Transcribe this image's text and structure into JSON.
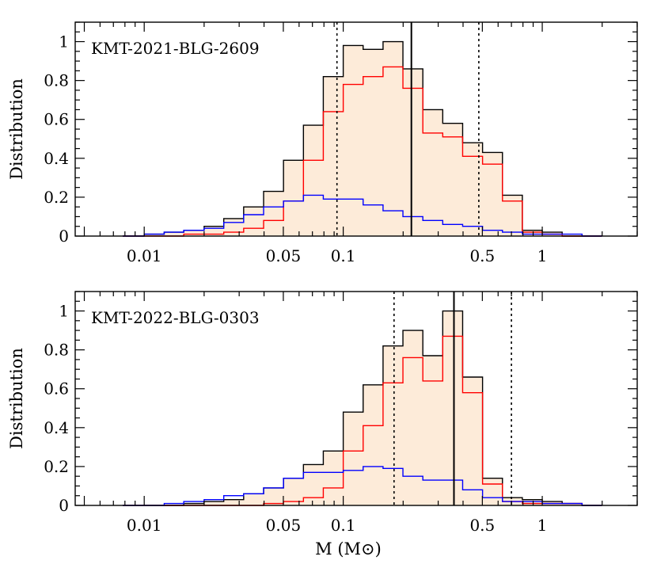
{
  "chart_data": [
    {
      "type": "histogram",
      "label": "KMT-2021-BLG-2609",
      "xlabel": "",
      "ylabel": "Distribution",
      "x_scale": "log",
      "xlim": [
        0.0045,
        3.0
      ],
      "ylim": [
        0,
        1.1
      ],
      "xtick_labels": [
        "0.01",
        "0.05",
        "0.1",
        "0.5",
        "1"
      ],
      "xtick_values": [
        0.01,
        0.05,
        0.1,
        0.5,
        1
      ],
      "ytick_labels": [
        "0",
        "0.2",
        "0.4",
        "0.6",
        "0.8",
        "1"
      ],
      "ytick_values": [
        0,
        0.2,
        0.4,
        0.6,
        0.8,
        1
      ],
      "bin_edges": [
        0.0078,
        0.01,
        0.0126,
        0.0158,
        0.02,
        0.0251,
        0.0316,
        0.0398,
        0.0501,
        0.0631,
        0.0794,
        0.1,
        0.1259,
        0.1585,
        0.1995,
        0.2512,
        0.3162,
        0.3981,
        0.5012,
        0.631,
        0.7943,
        1.0,
        1.259,
        1.585,
        1.995
      ],
      "series": [
        {
          "role": "total",
          "color": "#000000",
          "fill": "#fdebd9",
          "values": [
            0.0,
            0.01,
            0.02,
            0.03,
            0.05,
            0.09,
            0.15,
            0.23,
            0.39,
            0.57,
            0.82,
            0.98,
            0.96,
            1.0,
            0.86,
            0.65,
            0.58,
            0.48,
            0.43,
            0.21,
            0.03,
            0.02,
            0.0,
            0.0
          ]
        },
        {
          "role": "component-red",
          "color": "#ff0000",
          "values": [
            0.0,
            0.0,
            0.0,
            0.01,
            0.01,
            0.02,
            0.04,
            0.08,
            0.18,
            0.39,
            0.64,
            0.78,
            0.82,
            0.87,
            0.76,
            0.53,
            0.51,
            0.41,
            0.37,
            0.18,
            0.02,
            0.01,
            0.0,
            0.0
          ]
        },
        {
          "role": "component-blue",
          "color": "#0000ff",
          "values": [
            0.0,
            0.01,
            0.02,
            0.03,
            0.04,
            0.07,
            0.11,
            0.15,
            0.18,
            0.21,
            0.19,
            0.19,
            0.16,
            0.13,
            0.1,
            0.08,
            0.06,
            0.05,
            0.03,
            0.02,
            0.01,
            0.01,
            0.01,
            0.0
          ]
        }
      ],
      "median": 0.22,
      "bounds": [
        0.093,
        0.48
      ]
    },
    {
      "type": "histogram",
      "label": "KMT-2022-BLG-0303",
      "xlabel": "M  (M⊙)",
      "ylabel": "Distribution",
      "x_scale": "log",
      "xlim": [
        0.0045,
        3.0
      ],
      "ylim": [
        0,
        1.1
      ],
      "xtick_labels": [
        "0.01",
        "0.05",
        "0.1",
        "0.5",
        "1"
      ],
      "xtick_values": [
        0.01,
        0.05,
        0.1,
        0.5,
        1
      ],
      "ytick_labels": [
        "0",
        "0.2",
        "0.4",
        "0.6",
        "0.8",
        "1"
      ],
      "ytick_values": [
        0,
        0.2,
        0.4,
        0.6,
        0.8,
        1
      ],
      "bin_edges": [
        0.0078,
        0.01,
        0.0126,
        0.0158,
        0.02,
        0.0251,
        0.0316,
        0.0398,
        0.0501,
        0.0631,
        0.0794,
        0.1,
        0.1259,
        0.1585,
        0.1995,
        0.2512,
        0.3162,
        0.3981,
        0.5012,
        0.631,
        0.7943,
        1.0,
        1.259,
        1.585,
        1.995
      ],
      "series": [
        {
          "role": "total",
          "color": "#000000",
          "fill": "#fdebd9",
          "values": [
            0.0,
            0.0,
            0.0,
            0.01,
            0.02,
            0.03,
            0.06,
            0.09,
            0.14,
            0.21,
            0.28,
            0.48,
            0.62,
            0.82,
            0.9,
            0.77,
            1.0,
            0.66,
            0.14,
            0.04,
            0.03,
            0.02,
            0.01,
            0.0
          ]
        },
        {
          "role": "component-red",
          "color": "#ff0000",
          "values": [
            0.0,
            0.0,
            0.0,
            0.0,
            0.0,
            0.0,
            0.0,
            0.01,
            0.02,
            0.04,
            0.09,
            0.28,
            0.41,
            0.63,
            0.76,
            0.64,
            0.87,
            0.58,
            0.11,
            0.02,
            0.01,
            0.01,
            0.01,
            0.0
          ]
        },
        {
          "role": "component-blue",
          "color": "#0000ff",
          "values": [
            0.0,
            0.0,
            0.01,
            0.02,
            0.03,
            0.05,
            0.06,
            0.09,
            0.14,
            0.17,
            0.17,
            0.18,
            0.2,
            0.19,
            0.15,
            0.13,
            0.13,
            0.08,
            0.04,
            0.02,
            0.02,
            0.01,
            0.01,
            0.0
          ]
        }
      ],
      "median": 0.36,
      "bounds": [
        0.18,
        0.7
      ]
    }
  ]
}
